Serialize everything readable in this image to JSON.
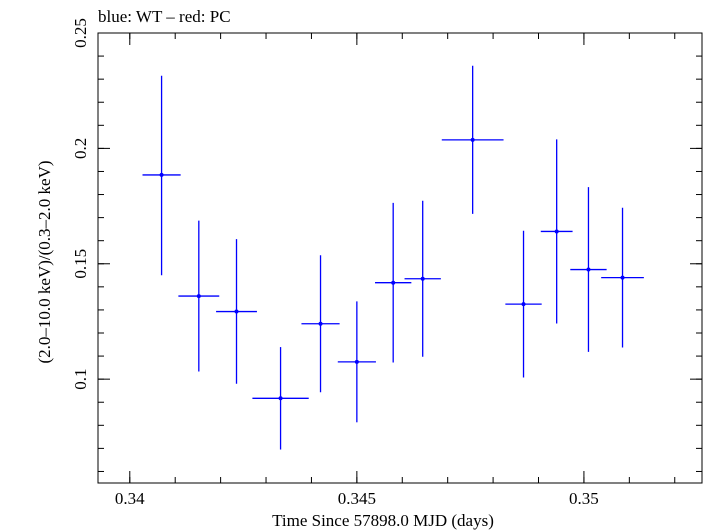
{
  "chart_data": {
    "type": "scatter",
    "title": "blue: WT – red: PC",
    "xlabel": "Time Since 57898.0 MJD (days)",
    "ylabel": "(2.0–10.0 keV)/(0.3–2.0 keV)",
    "xlim": [
      0.3393,
      0.3526
    ],
    "ylim": [
      0.055,
      0.25
    ],
    "x_ticks": [
      {
        "value": 0.34,
        "label": "0.34"
      },
      {
        "value": 0.345,
        "label": "0.345"
      },
      {
        "value": 0.35,
        "label": "0.35"
      }
    ],
    "y_ticks": [
      {
        "value": 0.1,
        "label": "0.1"
      },
      {
        "value": 0.15,
        "label": "0.15"
      },
      {
        "value": 0.2,
        "label": "0.2"
      },
      {
        "value": 0.25,
        "label": "0.25"
      }
    ],
    "grid": false,
    "color": "#0000ff",
    "series": [
      {
        "points": [
          {
            "x": 0.3407,
            "xerr": 0.00042,
            "y": 0.1885,
            "ylo": 0.145,
            "yhi": 0.2315
          },
          {
            "x": 0.34152,
            "xerr": 0.00045,
            "y": 0.136,
            "ylo": 0.1033,
            "yhi": 0.1687
          },
          {
            "x": 0.34235,
            "xerr": 0.00045,
            "y": 0.1293,
            "ylo": 0.098,
            "yhi": 0.1607
          },
          {
            "x": 0.34332,
            "xerr": 0.00062,
            "y": 0.0917,
            "ylo": 0.0695,
            "yhi": 0.1139
          },
          {
            "x": 0.3442,
            "xerr": 0.00042,
            "y": 0.124,
            "ylo": 0.0943,
            "yhi": 0.1537
          },
          {
            "x": 0.345,
            "xerr": 0.00042,
            "y": 0.1075,
            "ylo": 0.0813,
            "yhi": 0.1337
          },
          {
            "x": 0.3458,
            "xerr": 0.0004,
            "y": 0.1418,
            "ylo": 0.1072,
            "yhi": 0.1764
          },
          {
            "x": 0.34645,
            "xerr": 0.0004,
            "y": 0.1435,
            "ylo": 0.1097,
            "yhi": 0.1773
          },
          {
            "x": 0.34755,
            "xerr": 0.00068,
            "y": 0.2037,
            "ylo": 0.1716,
            "yhi": 0.2358
          },
          {
            "x": 0.34867,
            "xerr": 0.0004,
            "y": 0.1325,
            "ylo": 0.1007,
            "yhi": 0.1643
          },
          {
            "x": 0.3494,
            "xerr": 0.00035,
            "y": 0.164,
            "ylo": 0.1241,
            "yhi": 0.2039
          },
          {
            "x": 0.3501,
            "xerr": 0.0004,
            "y": 0.1475,
            "ylo": 0.1118,
            "yhi": 0.1832
          },
          {
            "x": 0.35085,
            "xerr": 0.00047,
            "y": 0.144,
            "ylo": 0.1137,
            "yhi": 0.1743
          }
        ]
      }
    ]
  }
}
